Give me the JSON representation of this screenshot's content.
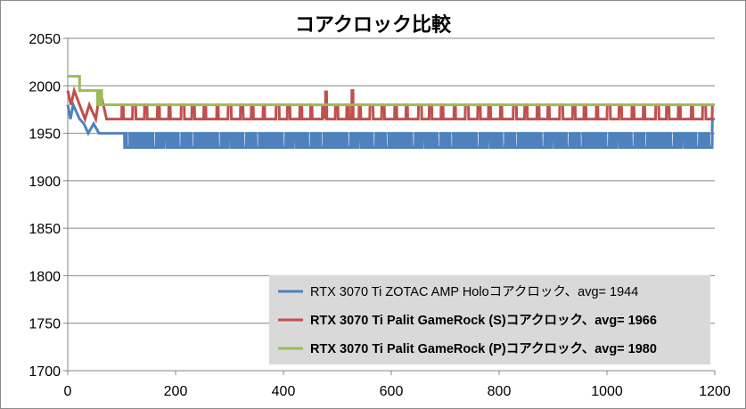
{
  "chart_data": {
    "type": "line",
    "title": "コアクロック比較",
    "xlabel": "",
    "ylabel": "",
    "xlim": [
      0,
      1200
    ],
    "ylim": [
      1700,
      2050
    ],
    "xticks": [
      0,
      200,
      400,
      600,
      800,
      1000,
      1200
    ],
    "yticks": [
      1700,
      1750,
      1800,
      1850,
      1900,
      1950,
      2000,
      2050
    ],
    "grid": "horizontal",
    "legend_position": "bottom-right",
    "series": [
      {
        "name": "RTX 3070 Ti ZOTAC AMP Holoコアクロック、avg= 1944",
        "color": "#4f81bd",
        "bold": false,
        "pattern": {
          "type": "fluctuating",
          "base": 1950,
          "alt": 1935,
          "period": 6,
          "start": 105,
          "end": 1195,
          "initial": [
            [
              0,
              1980
            ],
            [
              5,
              1965
            ],
            [
              10,
              1980
            ],
            [
              22,
              1965
            ],
            [
              30,
              1960
            ],
            [
              38,
              1950
            ],
            [
              48,
              1960
            ],
            [
              58,
              1950
            ],
            [
              70,
              1950
            ],
            [
              85,
              1950
            ],
            [
              100,
              1950
            ]
          ],
          "final_value": 1965
        }
      },
      {
        "name": "RTX 3070 Ti Palit GameRock (S)コアクロック、avg= 1966",
        "color": "#c0504d",
        "bold": true,
        "pattern": {
          "type": "fluctuating",
          "base": 1965,
          "alt": 1980,
          "period": 22,
          "start": 100,
          "end": 1195,
          "initial": [
            [
              0,
              1995
            ],
            [
              6,
              1980
            ],
            [
              12,
              1995
            ],
            [
              22,
              1980
            ],
            [
              32,
              1965
            ],
            [
              40,
              1980
            ],
            [
              52,
              1965
            ],
            [
              60,
              1995
            ],
            [
              66,
              1980
            ],
            [
              72,
              1965
            ],
            [
              90,
              1965
            ]
          ],
          "spikes": [
            [
              478,
              1995
            ],
            [
              527,
              1995
            ]
          ],
          "final_value": 1980
        }
      },
      {
        "name": "RTX 3070 Ti Palit GameRock (P)コアクロック、avg= 1980",
        "color": "#9bbb59",
        "bold": true,
        "pattern": {
          "type": "steps",
          "points": [
            [
              0,
              2010
            ],
            [
              22,
              2010
            ],
            [
              22,
              1995
            ],
            [
              55,
              1995
            ],
            [
              55,
              1980
            ],
            [
              60,
              1980
            ],
            [
              60,
              1995
            ],
            [
              63,
              1995
            ],
            [
              63,
              1980
            ],
            [
              1200,
              1980
            ]
          ]
        }
      }
    ]
  }
}
